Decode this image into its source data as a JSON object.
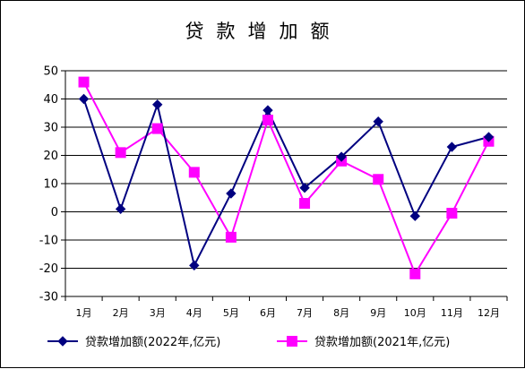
{
  "chart_data": {
    "type": "line",
    "title": "贷款增加额",
    "categories": [
      "1月",
      "2月",
      "3月",
      "4月",
      "5月",
      "6月",
      "7月",
      "8月",
      "9月",
      "10月",
      "11月",
      "12月"
    ],
    "ylim": [
      -30,
      50
    ],
    "yticks": [
      -30,
      -20,
      -10,
      0,
      10,
      20,
      30,
      40,
      50
    ],
    "grid": true,
    "legend_position": "bottom",
    "series": [
      {
        "name": "贷款增加额(2022年,亿元)",
        "color": "#000080",
        "marker": "diamond",
        "values": [
          40,
          1,
          38,
          -19,
          6.5,
          36,
          8.5,
          19.5,
          32,
          -1.5,
          23,
          26.5
        ]
      },
      {
        "name": "贷款增加额(2021年,亿元)",
        "color": "#ff00ff",
        "marker": "square",
        "values": [
          46,
          21,
          29.5,
          14,
          -9,
          32.5,
          3,
          18,
          11.5,
          -22,
          -0.5,
          25
        ]
      }
    ]
  }
}
